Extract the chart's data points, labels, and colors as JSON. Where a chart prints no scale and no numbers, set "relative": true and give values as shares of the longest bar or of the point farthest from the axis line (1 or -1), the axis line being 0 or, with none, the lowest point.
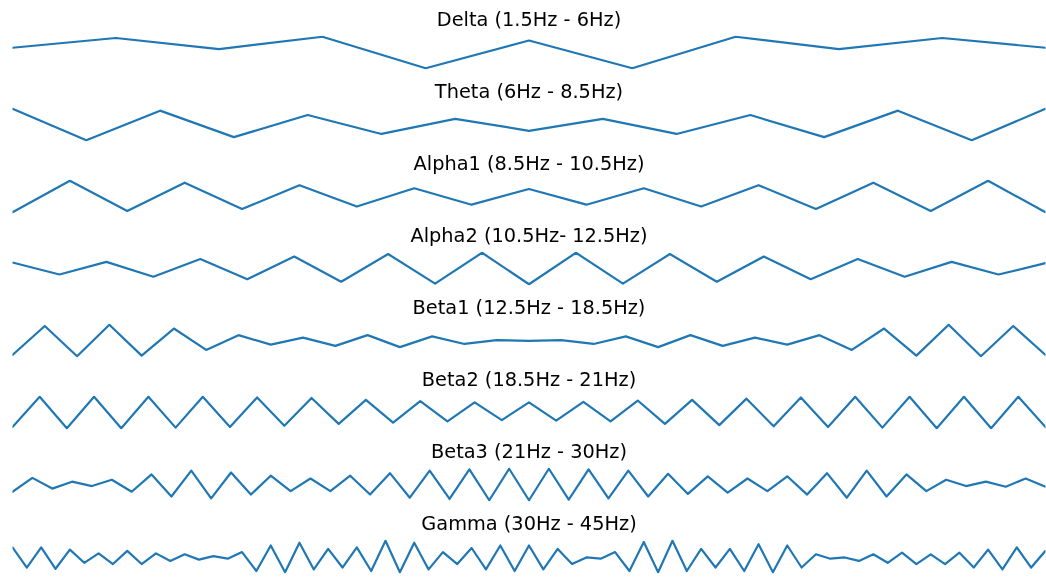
{
  "chart_data": [
    {
      "type": "line",
      "title": "Delta (1.5Hz - 6Hz)",
      "relative": true,
      "tick_labels": false,
      "color": "#1f77b4",
      "categories": [
        null,
        null,
        null,
        null,
        null,
        null,
        null,
        null,
        null,
        null,
        null
      ],
      "values": [
        0.65,
        0.96,
        0.61,
        1,
        0,
        0.88,
        0,
        1,
        0.61,
        0.96,
        0.65
      ]
    },
    {
      "type": "line",
      "title": "Theta (6Hz - 8.5Hz)",
      "relative": true,
      "tick_labels": false,
      "color": "#1f77b4",
      "categories": [
        null,
        null,
        null,
        null,
        null,
        null,
        null,
        null,
        null,
        null,
        null,
        null,
        null,
        null,
        null
      ],
      "values": [
        1,
        0,
        0.94,
        0.1,
        0.8,
        0.2,
        0.68,
        0.3,
        0.68,
        0.2,
        0.8,
        0.1,
        0.94,
        0,
        1
      ]
    },
    {
      "type": "line",
      "title": "Alpha1 (8.5Hz - 10.5Hz)",
      "relative": true,
      "tick_labels": false,
      "color": "#1f77b4",
      "categories": [
        null,
        null,
        null,
        null,
        null,
        null,
        null,
        null,
        null,
        null,
        null,
        null,
        null,
        null,
        null,
        null,
        null,
        null,
        null
      ],
      "values": [
        0,
        1,
        0.04,
        0.94,
        0.1,
        0.86,
        0.18,
        0.76,
        0.24,
        0.74,
        0.24,
        0.76,
        0.18,
        0.86,
        0.1,
        0.94,
        0.04,
        1,
        0
      ]
    },
    {
      "type": "line",
      "title": "Alpha2 (10.5Hz- 12.5Hz)",
      "relative": true,
      "tick_labels": false,
      "color": "#1f77b4",
      "categories": [
        null,
        null,
        null,
        null,
        null,
        null,
        null,
        null,
        null,
        null,
        null,
        null,
        null,
        null,
        null,
        null,
        null,
        null,
        null,
        null,
        null,
        null,
        null
      ],
      "values": [
        0.69,
        0.31,
        0.71,
        0.24,
        0.8,
        0.16,
        0.88,
        0.08,
        0.96,
        0.02,
        1,
        0,
        1,
        0.02,
        0.96,
        0.08,
        0.88,
        0.16,
        0.8,
        0.24,
        0.71,
        0.31,
        0.67
      ]
    },
    {
      "type": "line",
      "title": "Beta1 (12.5Hz - 18.5Hz)",
      "relative": true,
      "tick_labels": false,
      "color": "#1f77b4",
      "categories": [
        null,
        null,
        null,
        null,
        null,
        null,
        null,
        null,
        null,
        null,
        null,
        null,
        null,
        null,
        null,
        null,
        null,
        null,
        null,
        null,
        null,
        null,
        null,
        null,
        null,
        null,
        null,
        null,
        null,
        null,
        null,
        null,
        null
      ],
      "values": [
        0.04,
        0.96,
        0,
        1,
        0.02,
        0.88,
        0.2,
        0.67,
        0.37,
        0.59,
        0.33,
        0.67,
        0.29,
        0.63,
        0.39,
        0.51,
        0.49,
        0.51,
        0.39,
        0.63,
        0.29,
        0.67,
        0.33,
        0.59,
        0.37,
        0.67,
        0.2,
        0.88,
        0.02,
        1,
        0,
        0.96,
        0.04
      ]
    },
    {
      "type": "line",
      "title": "Beta2 (18.5Hz - 21Hz)",
      "relative": true,
      "tick_labels": false,
      "color": "#1f77b4",
      "categories": [
        null,
        null,
        null,
        null,
        null,
        null,
        null,
        null,
        null,
        null,
        null,
        null,
        null,
        null,
        null,
        null,
        null,
        null,
        null,
        null,
        null,
        null,
        null,
        null,
        null,
        null,
        null,
        null,
        null,
        null,
        null,
        null,
        null,
        null,
        null,
        null,
        null,
        null,
        null
      ],
      "values": [
        0.04,
        1,
        0,
        1,
        0,
        1,
        0.02,
        1,
        0.04,
        0.98,
        0.08,
        0.96,
        0.14,
        0.9,
        0.18,
        0.86,
        0.22,
        0.82,
        0.26,
        0.82,
        0.24,
        0.84,
        0.22,
        0.88,
        0.14,
        0.9,
        0.1,
        0.94,
        0.06,
        0.98,
        0.04,
        1,
        0.02,
        1,
        0,
        1,
        0,
        1,
        0.04
      ]
    },
    {
      "type": "line",
      "title": "Beta3 (21Hz - 30Hz)",
      "relative": true,
      "tick_labels": false,
      "color": "#1f77b4",
      "categories": [
        null,
        null,
        null,
        null,
        null,
        null,
        null,
        null,
        null,
        null,
        null,
        null,
        null,
        null,
        null,
        null,
        null,
        null,
        null,
        null,
        null,
        null,
        null,
        null,
        null,
        null,
        null,
        null,
        null,
        null,
        null,
        null,
        null,
        null,
        null,
        null,
        null,
        null,
        null,
        null,
        null,
        null,
        null,
        null,
        null,
        null,
        null,
        null,
        null,
        null,
        null,
        null,
        null
      ],
      "values": [
        0.27,
        0.71,
        0.37,
        0.59,
        0.45,
        0.65,
        0.27,
        0.82,
        0.12,
        0.94,
        0.06,
        0.88,
        0.18,
        0.78,
        0.29,
        0.69,
        0.29,
        0.78,
        0.18,
        0.86,
        0.08,
        0.94,
        0.04,
        0.98,
        0,
        1,
        0,
        1,
        0.02,
        0.98,
        0.06,
        0.94,
        0.12,
        0.84,
        0.2,
        0.76,
        0.24,
        0.69,
        0.29,
        0.76,
        0.18,
        0.86,
        0.08,
        0.94,
        0.12,
        0.82,
        0.29,
        0.65,
        0.45,
        0.59,
        0.43,
        0.69,
        0.43
      ]
    },
    {
      "type": "line",
      "title": "Gamma (30Hz - 45Hz)",
      "relative": true,
      "tick_labels": false,
      "color": "#1f77b4",
      "categories": [
        null,
        null,
        null,
        null,
        null,
        null,
        null,
        null,
        null,
        null,
        null,
        null,
        null,
        null,
        null,
        null,
        null,
        null,
        null,
        null,
        null,
        null,
        null,
        null,
        null,
        null,
        null,
        null,
        null,
        null,
        null,
        null,
        null,
        null,
        null,
        null,
        null,
        null,
        null,
        null,
        null,
        null,
        null,
        null,
        null,
        null,
        null,
        null,
        null,
        null,
        null,
        null,
        null,
        null,
        null,
        null,
        null,
        null,
        null,
        null,
        null,
        null,
        null,
        null,
        null,
        null,
        null,
        null,
        null,
        null,
        null,
        null,
        null
      ],
      "values": [
        0.79,
        0.15,
        0.79,
        0.11,
        0.72,
        0.3,
        0.6,
        0.26,
        0.68,
        0.26,
        0.6,
        0.36,
        0.57,
        0.4,
        0.51,
        0.43,
        0.64,
        0.04,
        0.85,
        0,
        0.94,
        0.09,
        0.74,
        0.15,
        0.79,
        0.04,
        1,
        0,
        0.94,
        0.09,
        0.64,
        0.26,
        0.77,
        0.09,
        0.85,
        0.04,
        0.85,
        0.09,
        0.74,
        0.26,
        0.47,
        0.43,
        0.64,
        0.04,
        0.96,
        0,
        1,
        0.04,
        0.74,
        0.15,
        0.74,
        0.04,
        0.89,
        0,
        0.85,
        0.15,
        0.57,
        0.43,
        0.47,
        0.36,
        0.57,
        0.3,
        0.62,
        0.26,
        0.57,
        0.26,
        0.62,
        0.15,
        0.72,
        0.09,
        0.79,
        0.15,
        0.68
      ]
    }
  ]
}
